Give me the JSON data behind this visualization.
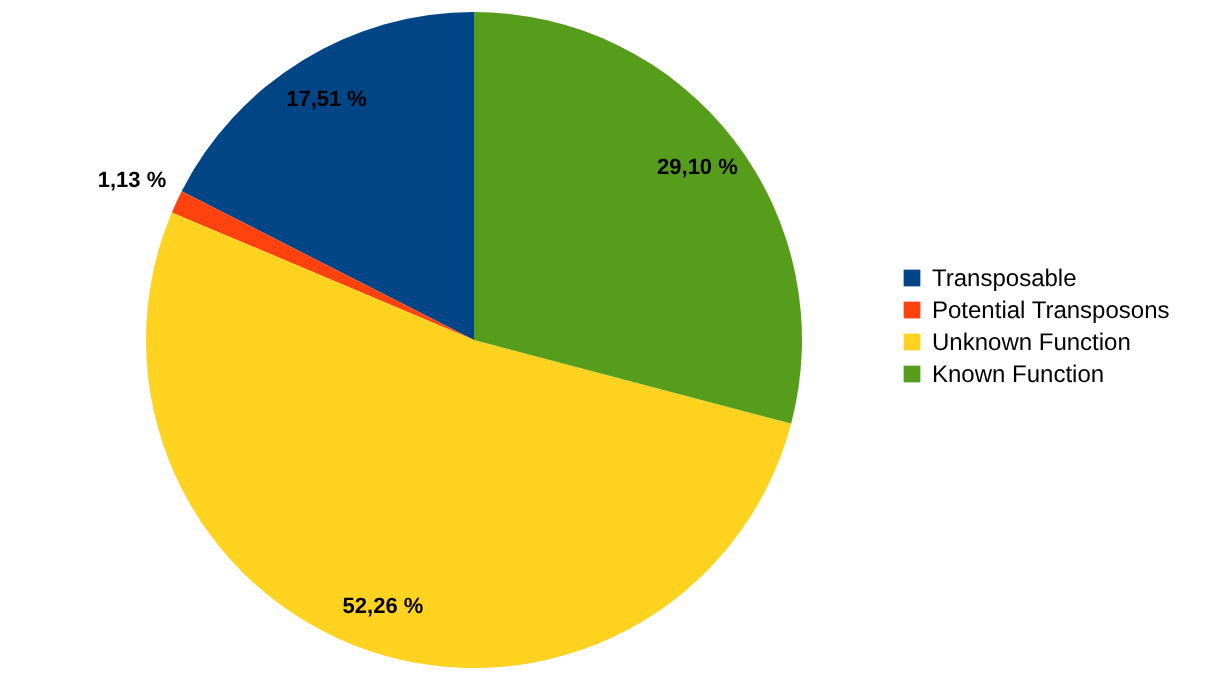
{
  "chart_data": {
    "type": "pie",
    "categories": [
      "Transposable",
      "Potential Transposons",
      "Unknown Function",
      "Known Function"
    ],
    "values": [
      17.51,
      1.13,
      52.26,
      29.1
    ],
    "colors": [
      "#004586",
      "#ff420e",
      "#ffd320",
      "#579d1c"
    ],
    "value_labels": [
      "17,51 %",
      "1,13 %",
      "52,26 %",
      "29,10 %"
    ],
    "legend": "right"
  }
}
